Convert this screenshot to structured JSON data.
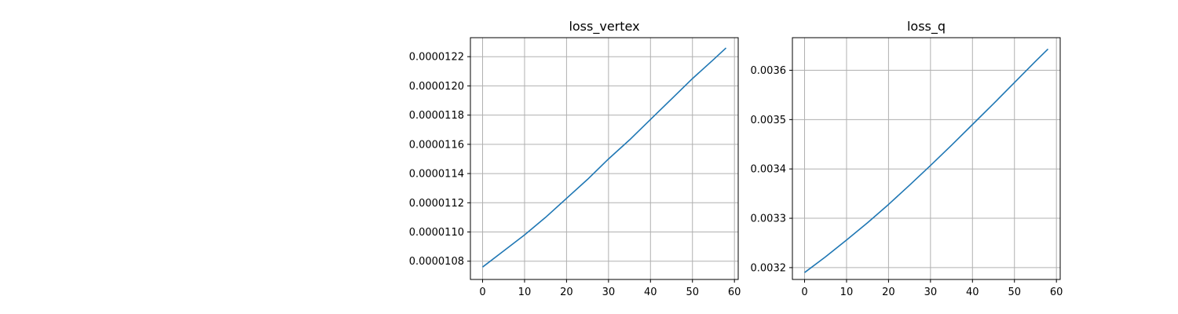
{
  "chart_data": [
    {
      "type": "line",
      "title": "loss_vertex",
      "xlabel": "",
      "ylabel": "",
      "xlim": [
        -2.9,
        60.9
      ],
      "ylim": [
        1.0675e-05,
        1.233e-05
      ],
      "xticks": [
        0,
        10,
        20,
        30,
        40,
        50,
        60
      ],
      "yticks": [
        1.08e-05,
        1.1e-05,
        1.12e-05,
        1.14e-05,
        1.16e-05,
        1.18e-05,
        1.2e-05,
        1.22e-05
      ],
      "ytick_labels": [
        "0.0000108",
        "0.0000110",
        "0.0000112",
        "0.0000114",
        "0.0000116",
        "0.0000118",
        "0.0000120",
        "0.0000122"
      ],
      "grid": true,
      "color": "#1f77b4",
      "series": [
        {
          "x": [
            0,
            5,
            10,
            15,
            20,
            25,
            30,
            35,
            40,
            45,
            50,
            55,
            58
          ],
          "y": [
            1.076e-05,
            1.087e-05,
            1.098e-05,
            1.11e-05,
            1.123e-05,
            1.136e-05,
            1.15e-05,
            1.163e-05,
            1.177e-05,
            1.191e-05,
            1.205e-05,
            1.218e-05,
            1.226e-05
          ]
        }
      ]
    },
    {
      "type": "line",
      "title": "loss_q",
      "xlabel": "",
      "ylabel": "",
      "xlim": [
        -2.9,
        60.9
      ],
      "ylim": [
        0.003176,
        0.003666
      ],
      "xticks": [
        0,
        10,
        20,
        30,
        40,
        50,
        60
      ],
      "yticks": [
        0.0032,
        0.0033,
        0.0034,
        0.0035,
        0.0036
      ],
      "ytick_labels": [
        "0.0032",
        "0.0033",
        "0.0034",
        "0.0035",
        "0.0036"
      ],
      "grid": true,
      "color": "#1f77b4",
      "series": [
        {
          "x": [
            0,
            5,
            10,
            15,
            20,
            25,
            30,
            35,
            40,
            45,
            50,
            55,
            58
          ],
          "y": [
            0.00319,
            0.003222,
            0.003256,
            0.003291,
            0.003328,
            0.003367,
            0.003407,
            0.003448,
            0.00349,
            0.003532,
            0.003575,
            0.003618,
            0.003643
          ]
        }
      ]
    }
  ]
}
